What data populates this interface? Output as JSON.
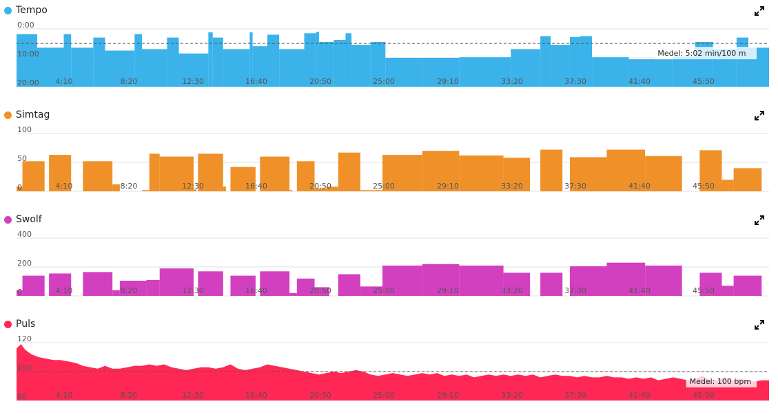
{
  "x_ticks": [
    "4:10",
    "8:20",
    "12:30",
    "16:40",
    "20:50",
    "25:00",
    "29:10",
    "33:20",
    "37:30",
    "41:40",
    "45:50"
  ],
  "icons": {
    "expand": "expand-icon"
  },
  "chart_data": [
    {
      "type": "area",
      "title": "Tempo",
      "color": "#3bb2ea",
      "inverted_y": true,
      "ylim": [
        0,
        20
      ],
      "y_ticks": [
        "0:00",
        "10:00",
        "20:00"
      ],
      "y_tick_values": [
        0,
        10,
        20
      ],
      "x_unit": "minutes",
      "xlim": [
        0,
        50
      ],
      "average": 5.03,
      "average_label": "Medel: 5:02 min/100 m",
      "series": [
        {
          "segments": [
            [
              0,
              1.4,
              1.8
            ],
            [
              1.4,
              3.2,
              6.5
            ],
            [
              3.2,
              3.7,
              1.8
            ],
            [
              3.7,
              5.2,
              6.5
            ],
            [
              5.2,
              6.0,
              3.0
            ],
            [
              6.0,
              8.0,
              7.5
            ],
            [
              8.0,
              8.5,
              1.8
            ],
            [
              8.5,
              10.2,
              7.0
            ],
            [
              10.2,
              11.0,
              3.0
            ],
            [
              11.0,
              13.0,
              8.5
            ],
            [
              13.0,
              13.3,
              1.2
            ],
            [
              13.3,
              14.0,
              3.0
            ],
            [
              14.0,
              15.8,
              7.0
            ],
            [
              15.8,
              16.0,
              1.2
            ],
            [
              16.0,
              17.0,
              6.0
            ],
            [
              17.0,
              17.8,
              2.0
            ],
            [
              17.8,
              19.5,
              7.0
            ],
            [
              19.5,
              20.3,
              1.5
            ],
            [
              20.3,
              20.5,
              1.0
            ],
            [
              20.5,
              21.5,
              4.5
            ],
            [
              21.5,
              22.3,
              3.8
            ],
            [
              22.3,
              22.7,
              1.5
            ],
            [
              22.7,
              24.0,
              5.5
            ],
            [
              24.0,
              25.0,
              4.5
            ],
            [
              25.0,
              27.5,
              10.0
            ],
            [
              27.5,
              30.0,
              10.0
            ],
            [
              30.0,
              33.5,
              9.8
            ],
            [
              33.5,
              35.5,
              7.0
            ],
            [
              35.5,
              36.2,
              2.5
            ],
            [
              36.2,
              37.5,
              5.5
            ],
            [
              37.5,
              38.2,
              2.8
            ],
            [
              38.2,
              39.0,
              2.5
            ],
            [
              39.0,
              41.5,
              9.8
            ],
            [
              41.5,
              44.5,
              10.5
            ],
            [
              44.5,
              46.0,
              9.5
            ],
            [
              46.0,
              47.2,
              4.5
            ],
            [
              47.2,
              48.8,
              7.0
            ],
            [
              48.8,
              49.6,
              3.0
            ],
            [
              49.6,
              51.0,
              6.5
            ]
          ]
        }
      ]
    },
    {
      "type": "bar",
      "title": "Simtag",
      "color": "#ef9128",
      "ylim": [
        0,
        100
      ],
      "y_ticks": [
        "100",
        "50",
        "0"
      ],
      "y_tick_values": [
        100,
        50,
        0
      ],
      "xlim": [
        0,
        50
      ],
      "series": [
        {
          "segments": [
            [
              0,
              0.4,
              8
            ],
            [
              0.4,
              1.9,
              52
            ],
            [
              2.2,
              3.7,
              63
            ],
            [
              4.5,
              6.5,
              52
            ],
            [
              6.5,
              7.0,
              12
            ],
            [
              8.5,
              9.0,
              2
            ],
            [
              9.0,
              9.7,
              65
            ],
            [
              9.7,
              12.0,
              60
            ],
            [
              12.0,
              12.2,
              3
            ],
            [
              12.3,
              14.0,
              65
            ],
            [
              14.0,
              14.2,
              8
            ],
            [
              14.5,
              16.2,
              42
            ],
            [
              16.5,
              18.5,
              60
            ],
            [
              18.5,
              18.7,
              2
            ],
            [
              19.0,
              20.2,
              52
            ],
            [
              20.2,
              21.0,
              5
            ],
            [
              21.0,
              21.8,
              8
            ],
            [
              21.8,
              23.3,
              67
            ],
            [
              23.3,
              24.8,
              2
            ],
            [
              24.8,
              27.5,
              63
            ],
            [
              27.5,
              30.0,
              70
            ],
            [
              30.0,
              33.0,
              62
            ],
            [
              33.0,
              34.8,
              58
            ],
            [
              35.5,
              37.0,
              72
            ],
            [
              37.5,
              40.0,
              59
            ],
            [
              40.0,
              42.6,
              72
            ],
            [
              42.6,
              45.1,
              61
            ],
            [
              46.3,
              47.8,
              71
            ],
            [
              47.8,
              48.6,
              20
            ],
            [
              48.6,
              50.5,
              40
            ]
          ]
        }
      ]
    },
    {
      "type": "bar",
      "title": "Swolf",
      "color": "#d240c0",
      "ylim": [
        0,
        400
      ],
      "y_ticks": [
        "400",
        "200",
        "0"
      ],
      "y_tick_values": [
        400,
        200,
        0
      ],
      "xlim": [
        0,
        50
      ],
      "series": [
        {
          "segments": [
            [
              0,
              0.4,
              40
            ],
            [
              0.4,
              1.9,
              140
            ],
            [
              2.2,
              3.7,
              155
            ],
            [
              4.5,
              6.5,
              165
            ],
            [
              6.5,
              7.0,
              40
            ],
            [
              7.0,
              8.8,
              105
            ],
            [
              8.8,
              9.7,
              110
            ],
            [
              9.7,
              12.0,
              190
            ],
            [
              12.3,
              14.0,
              170
            ],
            [
              14.5,
              16.2,
              140
            ],
            [
              16.5,
              18.5,
              170
            ],
            [
              18.5,
              19.0,
              20
            ],
            [
              19.0,
              20.2,
              120
            ],
            [
              20.2,
              21.2,
              60
            ],
            [
              21.8,
              23.3,
              150
            ],
            [
              23.3,
              24.8,
              65
            ],
            [
              24.8,
              27.5,
              210
            ],
            [
              27.5,
              30.0,
              220
            ],
            [
              30.0,
              33.0,
              210
            ],
            [
              33.0,
              34.8,
              160
            ],
            [
              35.5,
              37.0,
              160
            ],
            [
              37.5,
              40.0,
              205
            ],
            [
              40.0,
              42.6,
              230
            ],
            [
              42.6,
              45.1,
              210
            ],
            [
              46.3,
              47.8,
              160
            ],
            [
              47.8,
              48.6,
              70
            ],
            [
              48.6,
              50.5,
              140
            ]
          ]
        }
      ]
    },
    {
      "type": "area",
      "title": "Puls",
      "color": "#ff2855",
      "ylim": [
        80,
        120
      ],
      "y_ticks": [
        "120",
        "100",
        "80"
      ],
      "y_tick_values": [
        120,
        100,
        80
      ],
      "xlim": [
        0,
        50
      ],
      "average": 100,
      "average_label": "Medel: 100 bpm",
      "series": [
        {
          "points": [
            [
              0,
              116
            ],
            [
              0.3,
              119
            ],
            [
              0.6,
              115
            ],
            [
              1.0,
              112
            ],
            [
              1.5,
              110
            ],
            [
              2.0,
              109
            ],
            [
              2.5,
              108
            ],
            [
              3.0,
              108
            ],
            [
              3.5,
              107
            ],
            [
              4.0,
              106
            ],
            [
              4.5,
              104
            ],
            [
              5.0,
              103
            ],
            [
              5.5,
              102
            ],
            [
              6.0,
              104
            ],
            [
              6.5,
              102
            ],
            [
              7.0,
              102
            ],
            [
              7.5,
              103
            ],
            [
              8.0,
              104
            ],
            [
              8.5,
              104
            ],
            [
              9.0,
              105
            ],
            [
              9.5,
              104
            ],
            [
              10.0,
              105
            ],
            [
              10.5,
              103
            ],
            [
              11.0,
              102
            ],
            [
              11.5,
              101
            ],
            [
              12.0,
              102
            ],
            [
              12.5,
              103
            ],
            [
              13.0,
              103
            ],
            [
              13.5,
              102
            ],
            [
              14.0,
              103
            ],
            [
              14.5,
              105
            ],
            [
              15.0,
              102
            ],
            [
              15.5,
              101
            ],
            [
              16.0,
              102
            ],
            [
              16.5,
              103
            ],
            [
              17.0,
              105
            ],
            [
              17.5,
              104
            ],
            [
              18.0,
              103
            ],
            [
              18.5,
              102
            ],
            [
              19.0,
              101
            ],
            [
              19.5,
              100
            ],
            [
              20.0,
              99
            ],
            [
              20.5,
              98
            ],
            [
              21.0,
              99
            ],
            [
              21.5,
              100
            ],
            [
              22.0,
              99
            ],
            [
              22.5,
              100
            ],
            [
              23.0,
              101
            ],
            [
              23.5,
              100
            ],
            [
              24.0,
              98
            ],
            [
              24.5,
              97
            ],
            [
              25.0,
              98
            ],
            [
              25.5,
              99
            ],
            [
              26.0,
              98
            ],
            [
              26.5,
              97
            ],
            [
              27.0,
              98
            ],
            [
              27.5,
              99
            ],
            [
              28.0,
              98
            ],
            [
              28.5,
              99
            ],
            [
              29.0,
              97
            ],
            [
              29.5,
              98
            ],
            [
              30.0,
              97
            ],
            [
              30.5,
              98
            ],
            [
              31.0,
              96
            ],
            [
              31.5,
              97
            ],
            [
              32.0,
              98
            ],
            [
              32.5,
              97
            ],
            [
              33.0,
              98
            ],
            [
              33.5,
              97
            ],
            [
              34.0,
              98
            ],
            [
              34.5,
              97
            ],
            [
              35.0,
              98
            ],
            [
              35.5,
              96
            ],
            [
              36.0,
              97
            ],
            [
              36.5,
              98
            ],
            [
              37.0,
              97
            ],
            [
              37.5,
              97
            ],
            [
              38.0,
              96
            ],
            [
              38.5,
              97
            ],
            [
              39.0,
              96
            ],
            [
              39.5,
              96
            ],
            [
              40.0,
              97
            ],
            [
              40.5,
              96
            ],
            [
              41.0,
              96
            ],
            [
              41.5,
              95
            ],
            [
              42.0,
              96
            ],
            [
              42.5,
              95
            ],
            [
              43.0,
              96
            ],
            [
              43.5,
              94
            ],
            [
              44.0,
              95
            ],
            [
              44.5,
              96
            ],
            [
              45.0,
              95
            ],
            [
              45.5,
              94
            ],
            [
              46.0,
              95
            ],
            [
              46.5,
              97
            ],
            [
              47.0,
              94
            ],
            [
              47.5,
              94
            ],
            [
              48.0,
              96
            ],
            [
              48.5,
              94
            ],
            [
              49.0,
              95
            ],
            [
              49.5,
              94
            ],
            [
              50.0,
              93
            ],
            [
              50.5,
              94
            ]
          ]
        }
      ]
    }
  ]
}
